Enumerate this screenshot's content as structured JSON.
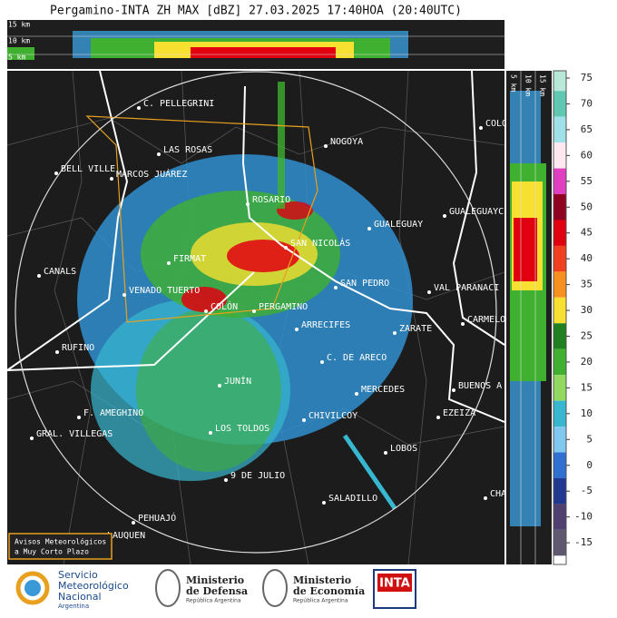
{
  "header": {
    "title": "Pergamino-INTA ZH MAX [dBZ] 27.03.2025 17:40HOA (20:40UTC)"
  },
  "top_strip": {
    "labels": [
      "15 km",
      "10 km",
      "5 km"
    ]
  },
  "side_strip": {
    "labels": [
      "5 km",
      "10 km",
      "15 km"
    ]
  },
  "colorbar": {
    "ticks": [
      75,
      70,
      65,
      60,
      55,
      50,
      45,
      40,
      35,
      30,
      25,
      20,
      15,
      10,
      5,
      0,
      -5,
      -10,
      -15
    ],
    "colors": [
      "#b8e8d8",
      "#60c8b0",
      "#a0e0e8",
      "#ffe8f0",
      "#e040c0",
      "#900020",
      "#e00010",
      "#f04020",
      "#f89020",
      "#f8e030",
      "#208020",
      "#40b030",
      "#90d860",
      "#38b8d0",
      "#80c8f0",
      "#3070d0",
      "#203890",
      "#504070",
      "#605870"
    ]
  },
  "map": {
    "cities": [
      "C. PELLEGRINI",
      "LAS ROSAS",
      "NOGOYA",
      "BELL VILLE",
      "MARCOS JUÁREZ",
      "ROSARIO",
      "GUALEGUAY",
      "GUALEGUAYC",
      "CANALS",
      "FIRMAT",
      "SAN NICOLÁS",
      "SAN PEDRO",
      "VAL PARANACI",
      "VENADO TUERTO",
      "COLÓN",
      "PERGAMINO",
      "ZARATE",
      "CARMELO",
      "ARRECIFES",
      "RUFINO",
      "C. DE ARECO",
      "MERCEDES",
      "BUENOS A",
      "JUNÍN",
      "F. AMEGHINO",
      "CHIVILCOY",
      "EZEIZA",
      "GRAL. VILLEGAS",
      "LOS TOLDOS",
      "LOBOS",
      "9 DE JULIO",
      "SALADILLO",
      "CHA",
      "PEHUAJÓ",
      "LAUQUEN",
      "COLO"
    ],
    "notice": [
      "Avisos Meteorológicos",
      "a Muy Corto Plazo"
    ]
  },
  "footer": {
    "smn": [
      "Servicio",
      "Meteorológico",
      "Nacional",
      "Argentina"
    ],
    "defensa": [
      "Ministerio",
      "de Defensa",
      "República Argentina"
    ],
    "economia": [
      "Ministerio",
      "de Economía",
      "República Argentina"
    ],
    "inta": "INTA"
  }
}
